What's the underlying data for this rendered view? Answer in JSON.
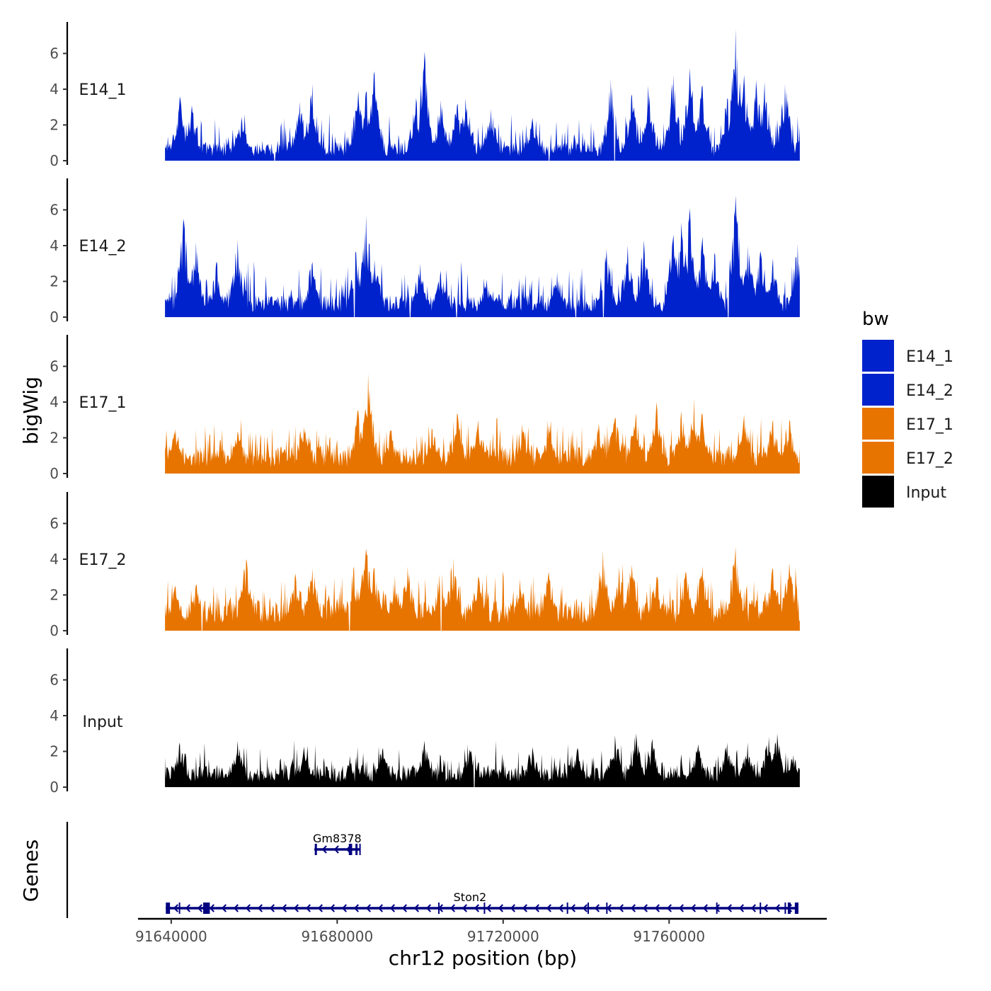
{
  "chart_data": {
    "type": "area",
    "title": "",
    "ylabel": "bigWig",
    "xlabel": "chr12 position (bp)",
    "chrom": "chr12",
    "xlim": [
      91632000,
      91798000
    ],
    "data_range": [
      91638500,
      91791500
    ],
    "ylim": [
      0,
      7.7
    ],
    "y_ticks": [
      0,
      2,
      4,
      6
    ],
    "x_ticks": [
      91640000,
      91680000,
      91720000,
      91760000
    ],
    "x_tick_labels": [
      "91640000",
      "91680000",
      "91720000",
      "91760000"
    ],
    "legend": {
      "title": "bw",
      "position": "right",
      "entries": [
        {
          "name": "E14_1",
          "color": "#0022CC"
        },
        {
          "name": "E14_2",
          "color": "#0022CC"
        },
        {
          "name": "E17_1",
          "color": "#E87400"
        },
        {
          "name": "E17_2",
          "color": "#E87400"
        },
        {
          "name": "Input",
          "color": "#000000"
        }
      ]
    },
    "series": [
      {
        "name": "E14_1",
        "color": "#0022CC",
        "base": 0.6,
        "noise": 1.0,
        "peaks": [
          {
            "x": 91642000,
            "y": 3.6
          },
          {
            "x": 91645000,
            "y": 3.1
          },
          {
            "x": 91657000,
            "y": 2.3
          },
          {
            "x": 91671000,
            "y": 3.3
          },
          {
            "x": 91674000,
            "y": 4.3
          },
          {
            "x": 91685000,
            "y": 3.9
          },
          {
            "x": 91687000,
            "y": 3.9
          },
          {
            "x": 91689000,
            "y": 5.0
          },
          {
            "x": 91699000,
            "y": 3.5
          },
          {
            "x": 91701000,
            "y": 6.1
          },
          {
            "x": 91705000,
            "y": 3.4
          },
          {
            "x": 91709000,
            "y": 3.2
          },
          {
            "x": 91711000,
            "y": 3.5
          },
          {
            "x": 91717000,
            "y": 2.9
          },
          {
            "x": 91727000,
            "y": 2.4
          },
          {
            "x": 91746000,
            "y": 4.6
          },
          {
            "x": 91751000,
            "y": 3.7
          },
          {
            "x": 91755000,
            "y": 4.2
          },
          {
            "x": 91761000,
            "y": 4.8
          },
          {
            "x": 91765000,
            "y": 5.2
          },
          {
            "x": 91768000,
            "y": 4.2
          },
          {
            "x": 91774000,
            "y": 3.5
          },
          {
            "x": 91776000,
            "y": 7.4
          },
          {
            "x": 91778000,
            "y": 4.8
          },
          {
            "x": 91781000,
            "y": 4.5
          },
          {
            "x": 91783000,
            "y": 4.4
          },
          {
            "x": 91788000,
            "y": 4.3
          }
        ],
        "gaps": [
          91665000,
          91731000,
          91746800
        ]
      },
      {
        "name": "E14_2",
        "color": "#0022CC",
        "base": 0.7,
        "noise": 1.1,
        "peaks": [
          {
            "x": 91643000,
            "y": 5.5
          },
          {
            "x": 91646000,
            "y": 4.2
          },
          {
            "x": 91651000,
            "y": 3.0
          },
          {
            "x": 91656000,
            "y": 4.3
          },
          {
            "x": 91674000,
            "y": 3.1
          },
          {
            "x": 91684500,
            "y": 3.6
          },
          {
            "x": 91687000,
            "y": 5.7
          },
          {
            "x": 91689000,
            "y": 3.2
          },
          {
            "x": 91700000,
            "y": 3.0
          },
          {
            "x": 91705000,
            "y": 2.6
          },
          {
            "x": 91716000,
            "y": 2.1
          },
          {
            "x": 91733000,
            "y": 2.5
          },
          {
            "x": 91745000,
            "y": 3.8
          },
          {
            "x": 91750000,
            "y": 4.0
          },
          {
            "x": 91754000,
            "y": 4.3
          },
          {
            "x": 91761000,
            "y": 4.6
          },
          {
            "x": 91763000,
            "y": 5.3
          },
          {
            "x": 91765000,
            "y": 6.1
          },
          {
            "x": 91768000,
            "y": 4.5
          },
          {
            "x": 91771000,
            "y": 3.6
          },
          {
            "x": 91776000,
            "y": 6.8
          },
          {
            "x": 91779000,
            "y": 4.0
          },
          {
            "x": 91782000,
            "y": 3.7
          },
          {
            "x": 91785000,
            "y": 3.3
          },
          {
            "x": 91791000,
            "y": 4.1
          }
        ],
        "gaps": [
          91684200,
          91697600,
          91708800,
          91737600,
          91744200,
          91774200
        ]
      },
      {
        "name": "E17_1",
        "color": "#E87400",
        "base": 0.9,
        "noise": 0.9,
        "peaks": [
          {
            "x": 91641000,
            "y": 2.5
          },
          {
            "x": 91656000,
            "y": 2.3
          },
          {
            "x": 91672000,
            "y": 2.6
          },
          {
            "x": 91685000,
            "y": 3.5
          },
          {
            "x": 91687500,
            "y": 5.6
          },
          {
            "x": 91693000,
            "y": 2.4
          },
          {
            "x": 91703000,
            "y": 2.5
          },
          {
            "x": 91709000,
            "y": 3.3
          },
          {
            "x": 91714000,
            "y": 3.0
          },
          {
            "x": 91725000,
            "y": 2.3
          },
          {
            "x": 91731000,
            "y": 2.7
          },
          {
            "x": 91743000,
            "y": 2.8
          },
          {
            "x": 91747000,
            "y": 3.1
          },
          {
            "x": 91752000,
            "y": 3.4
          },
          {
            "x": 91757000,
            "y": 4.0
          },
          {
            "x": 91763000,
            "y": 3.5
          },
          {
            "x": 91766000,
            "y": 4.2
          },
          {
            "x": 91768000,
            "y": 3.3
          },
          {
            "x": 91778000,
            "y": 3.3
          },
          {
            "x": 91785000,
            "y": 3.0
          },
          {
            "x": 91789000,
            "y": 2.9
          }
        ],
        "gaps": []
      },
      {
        "name": "E17_2",
        "color": "#E87400",
        "base": 1.0,
        "noise": 1.1,
        "peaks": [
          {
            "x": 91641000,
            "y": 2.5
          },
          {
            "x": 91646000,
            "y": 2.6
          },
          {
            "x": 91658000,
            "y": 4.0
          },
          {
            "x": 91670000,
            "y": 3.2
          },
          {
            "x": 91674000,
            "y": 3.5
          },
          {
            "x": 91684000,
            "y": 3.6
          },
          {
            "x": 91687000,
            "y": 4.6
          },
          {
            "x": 91689000,
            "y": 3.5
          },
          {
            "x": 91694000,
            "y": 2.9
          },
          {
            "x": 91697000,
            "y": 3.6
          },
          {
            "x": 91705000,
            "y": 3.5
          },
          {
            "x": 91708000,
            "y": 4.1
          },
          {
            "x": 91714000,
            "y": 3.0
          },
          {
            "x": 91724000,
            "y": 2.9
          },
          {
            "x": 91731000,
            "y": 3.3
          },
          {
            "x": 91744000,
            "y": 4.5
          },
          {
            "x": 91748000,
            "y": 3.3
          },
          {
            "x": 91751000,
            "y": 3.7
          },
          {
            "x": 91757000,
            "y": 3.0
          },
          {
            "x": 91764000,
            "y": 3.3
          },
          {
            "x": 91768000,
            "y": 3.6
          },
          {
            "x": 91776000,
            "y": 4.7
          },
          {
            "x": 91785000,
            "y": 3.5
          },
          {
            "x": 91789000,
            "y": 3.8
          }
        ],
        "gaps": [
          91647500,
          91683000,
          91705000
        ]
      },
      {
        "name": "Input",
        "color": "#000000",
        "base": 0.7,
        "noise": 0.8,
        "peaks": [
          {
            "x": 91642000,
            "y": 2.5
          },
          {
            "x": 91656000,
            "y": 2.6
          },
          {
            "x": 91672000,
            "y": 2.2
          },
          {
            "x": 91691000,
            "y": 2.2
          },
          {
            "x": 91701000,
            "y": 2.6
          },
          {
            "x": 91712000,
            "y": 2.1
          },
          {
            "x": 91727000,
            "y": 2.2
          },
          {
            "x": 91738000,
            "y": 2.2
          },
          {
            "x": 91747000,
            "y": 2.9
          },
          {
            "x": 91752000,
            "y": 3.0
          },
          {
            "x": 91756000,
            "y": 2.7
          },
          {
            "x": 91767000,
            "y": 2.4
          },
          {
            "x": 91774000,
            "y": 2.5
          },
          {
            "x": 91779000,
            "y": 2.5
          },
          {
            "x": 91784000,
            "y": 2.8
          },
          {
            "x": 91786000,
            "y": 3.0
          },
          {
            "x": 91790000,
            "y": 1.8
          }
        ],
        "gaps": [
          91713000
        ]
      }
    ],
    "genes_track": {
      "ylabel": "Genes",
      "color": "#000080",
      "genes": [
        {
          "name": "Gm8378",
          "start": 91674500,
          "end": 91685500,
          "strand": "-",
          "row": 1,
          "exons": [
            [
              91674600,
              91675100
            ],
            [
              91682800,
              91683600
            ],
            [
              91684400,
              91684800
            ]
          ],
          "label_pos": 91680000
        },
        {
          "name": "Ston2",
          "start": 91638700,
          "end": 91791000,
          "strand": "-",
          "row": 2,
          "exons": [
            [
              91638700,
              91639700
            ],
            [
              91647700,
              91649300
            ],
            [
              91788600,
              91789300
            ],
            [
              91790300,
              91790900
            ]
          ],
          "markers": [
            91642000,
            91704500,
            91715500,
            91735500,
            91740500,
            91745000,
            91771500,
            91782000,
            91788000
          ],
          "label_pos": 91712000
        }
      ]
    }
  }
}
